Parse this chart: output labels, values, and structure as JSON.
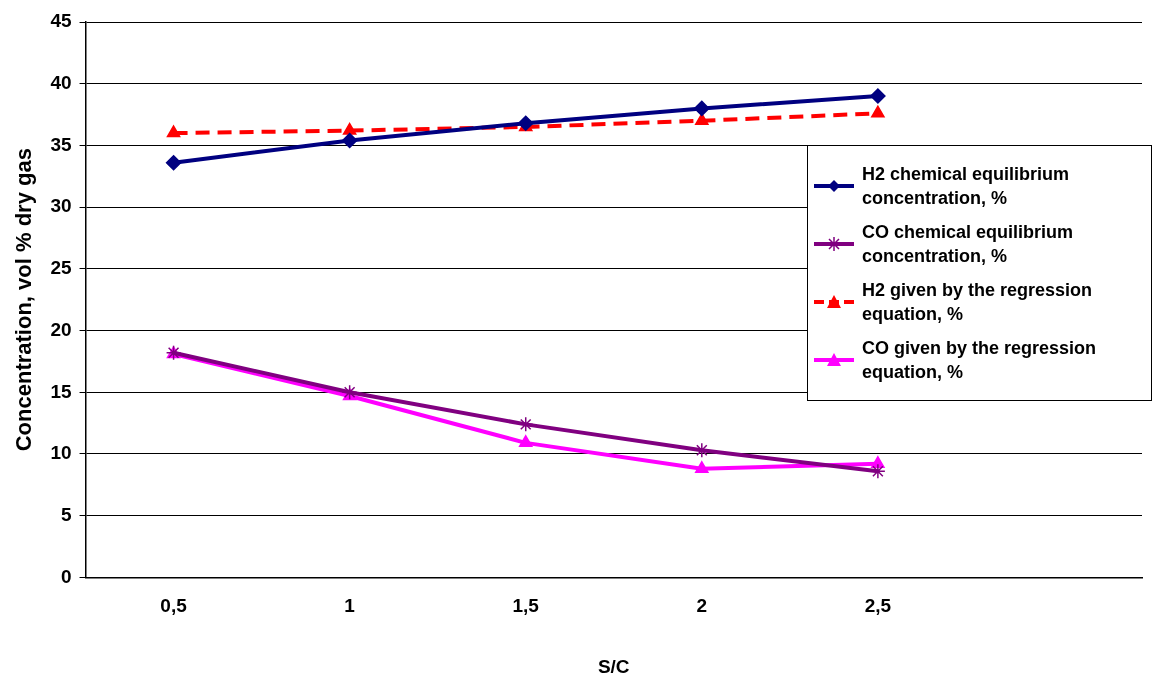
{
  "chart_data": {
    "type": "line",
    "xlabel": "S/C",
    "ylabel": "Concentration, vol % dry gas",
    "categories": [
      "0,5",
      "1",
      "1,5",
      "2",
      "2,5",
      null
    ],
    "series": [
      {
        "name": "H2 chemical equilibrium concentration, %",
        "color": "#000080",
        "marker": "diamond",
        "line_style": "solid",
        "values": [
          33.6,
          35.4,
          36.8,
          38.0,
          39.0,
          null
        ]
      },
      {
        "name": "CO chemical equilibrium concentration, %",
        "color": "#800080",
        "marker": "cross",
        "line_style": "solid",
        "values": [
          18.2,
          15.0,
          12.4,
          10.3,
          8.6,
          null
        ]
      },
      {
        "name": "H2 given by the regression equation, %",
        "color": "#ff0000",
        "marker": "triangle",
        "line_style": "dashed",
        "values": [
          36.0,
          36.2,
          36.5,
          37.0,
          37.6,
          null
        ]
      },
      {
        "name": "CO given by the regression equation, %",
        "color": "#ff00ff",
        "marker": "triangle",
        "line_style": "solid",
        "values": [
          18.1,
          14.7,
          10.9,
          8.8,
          9.2,
          null
        ]
      }
    ],
    "ylim": [
      0,
      45
    ],
    "yticks": [
      0,
      5,
      10,
      15,
      20,
      25,
      30,
      35,
      40,
      45
    ],
    "grid": "y",
    "legend": "right"
  }
}
